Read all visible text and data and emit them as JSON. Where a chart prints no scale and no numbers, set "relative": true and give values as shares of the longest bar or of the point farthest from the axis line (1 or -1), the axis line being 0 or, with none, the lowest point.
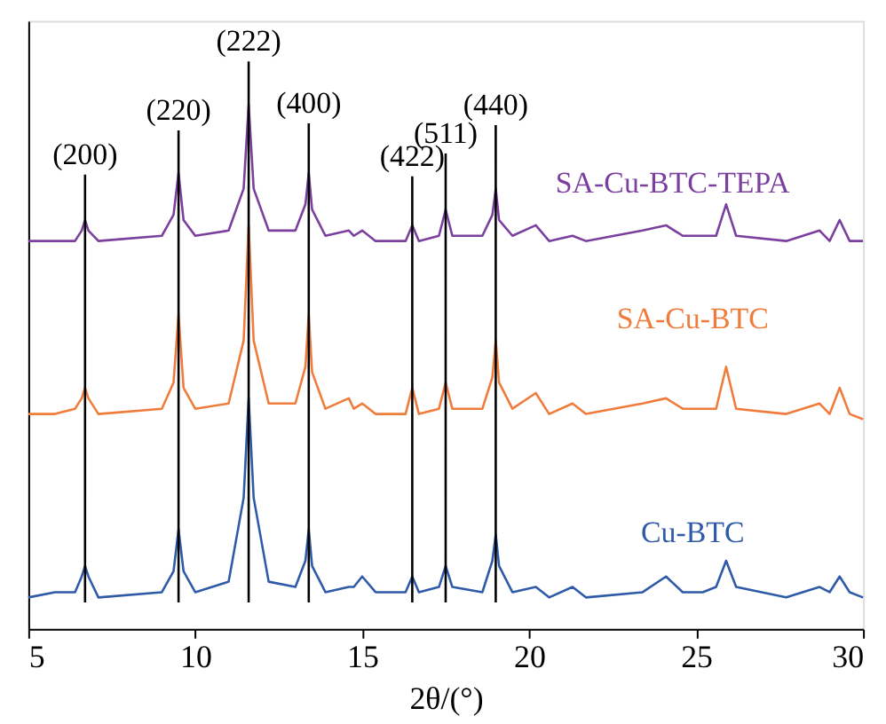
{
  "chart_data": {
    "type": "line",
    "relative": true,
    "xlabel": "2θ/(°)",
    "xlim": [
      5,
      30
    ],
    "xticks": [
      5,
      10,
      15,
      20,
      25,
      30
    ],
    "legend": false,
    "grid": false,
    "tick_labels": "x",
    "x": [
      5,
      5.8,
      6.4,
      6.6,
      6.7,
      6.8,
      7.1,
      9.0,
      9.35,
      9.5,
      9.65,
      10.0,
      11.0,
      11.45,
      11.6,
      11.75,
      12.2,
      13.0,
      13.3,
      13.4,
      13.5,
      13.9,
      14.6,
      14.75,
      15.0,
      15.4,
      16.3,
      16.5,
      16.7,
      17.3,
      17.5,
      17.7,
      18.6,
      18.9,
      19.0,
      19.1,
      19.5,
      20.2,
      20.6,
      21.3,
      21.7,
      23.4,
      24.1,
      24.6,
      25.2,
      25.6,
      25.9,
      26.2,
      27.7,
      28.7,
      29.0,
      29.3,
      29.6,
      30
    ],
    "series": [
      {
        "name": "SA-Cu-BTC-TEPA",
        "color": "#7b3f9e",
        "values": [
          0.74,
          0.74,
          0.74,
          0.76,
          0.78,
          0.76,
          0.74,
          0.75,
          0.79,
          0.87,
          0.78,
          0.75,
          0.76,
          0.84,
          1.0,
          0.84,
          0.76,
          0.76,
          0.81,
          0.87,
          0.8,
          0.75,
          0.76,
          0.75,
          0.76,
          0.74,
          0.74,
          0.77,
          0.74,
          0.75,
          0.8,
          0.75,
          0.75,
          0.79,
          0.84,
          0.78,
          0.75,
          0.77,
          0.74,
          0.75,
          0.74,
          0.76,
          0.77,
          0.75,
          0.75,
          0.75,
          0.81,
          0.75,
          0.74,
          0.76,
          0.74,
          0.78,
          0.74,
          0.74
        ]
      },
      {
        "name": "SA-Cu-BTC",
        "color": "#f07c3c",
        "values": [
          0.41,
          0.41,
          0.42,
          0.44,
          0.46,
          0.44,
          0.41,
          0.42,
          0.47,
          0.6,
          0.46,
          0.42,
          0.43,
          0.55,
          0.77,
          0.55,
          0.43,
          0.43,
          0.5,
          0.6,
          0.49,
          0.42,
          0.44,
          0.42,
          0.43,
          0.41,
          0.41,
          0.46,
          0.41,
          0.42,
          0.47,
          0.42,
          0.42,
          0.48,
          0.55,
          0.47,
          0.42,
          0.45,
          0.41,
          0.43,
          0.41,
          0.43,
          0.44,
          0.42,
          0.42,
          0.42,
          0.5,
          0.42,
          0.41,
          0.43,
          0.41,
          0.46,
          0.41,
          0.4
        ]
      },
      {
        "name": "Cu-BTC",
        "color": "#2e5aa8",
        "values": [
          0.06,
          0.07,
          0.07,
          0.1,
          0.12,
          0.1,
          0.06,
          0.07,
          0.11,
          0.19,
          0.11,
          0.07,
          0.09,
          0.25,
          0.44,
          0.25,
          0.09,
          0.08,
          0.13,
          0.19,
          0.12,
          0.07,
          0.08,
          0.08,
          0.1,
          0.07,
          0.07,
          0.1,
          0.07,
          0.08,
          0.12,
          0.08,
          0.07,
          0.13,
          0.18,
          0.12,
          0.07,
          0.08,
          0.06,
          0.08,
          0.06,
          0.07,
          0.1,
          0.07,
          0.07,
          0.08,
          0.13,
          0.08,
          0.06,
          0.08,
          0.07,
          0.1,
          0.07,
          0.06
        ]
      }
    ],
    "ref_lines": [
      {
        "axis": "x",
        "value": 6.7,
        "color": "#000000"
      },
      {
        "axis": "x",
        "value": 9.5,
        "color": "#000000"
      },
      {
        "axis": "x",
        "value": 11.6,
        "color": "#000000"
      },
      {
        "axis": "x",
        "value": 13.4,
        "color": "#000000"
      },
      {
        "axis": "x",
        "value": 16.5,
        "color": "#000000"
      },
      {
        "axis": "x",
        "value": 17.5,
        "color": "#000000"
      },
      {
        "axis": "x",
        "value": 19.0,
        "color": "#000000"
      }
    ],
    "annotations": [
      "(200)",
      "(220)",
      "(222)",
      "(400)",
      "(422)",
      "(511)",
      "(440)"
    ]
  }
}
